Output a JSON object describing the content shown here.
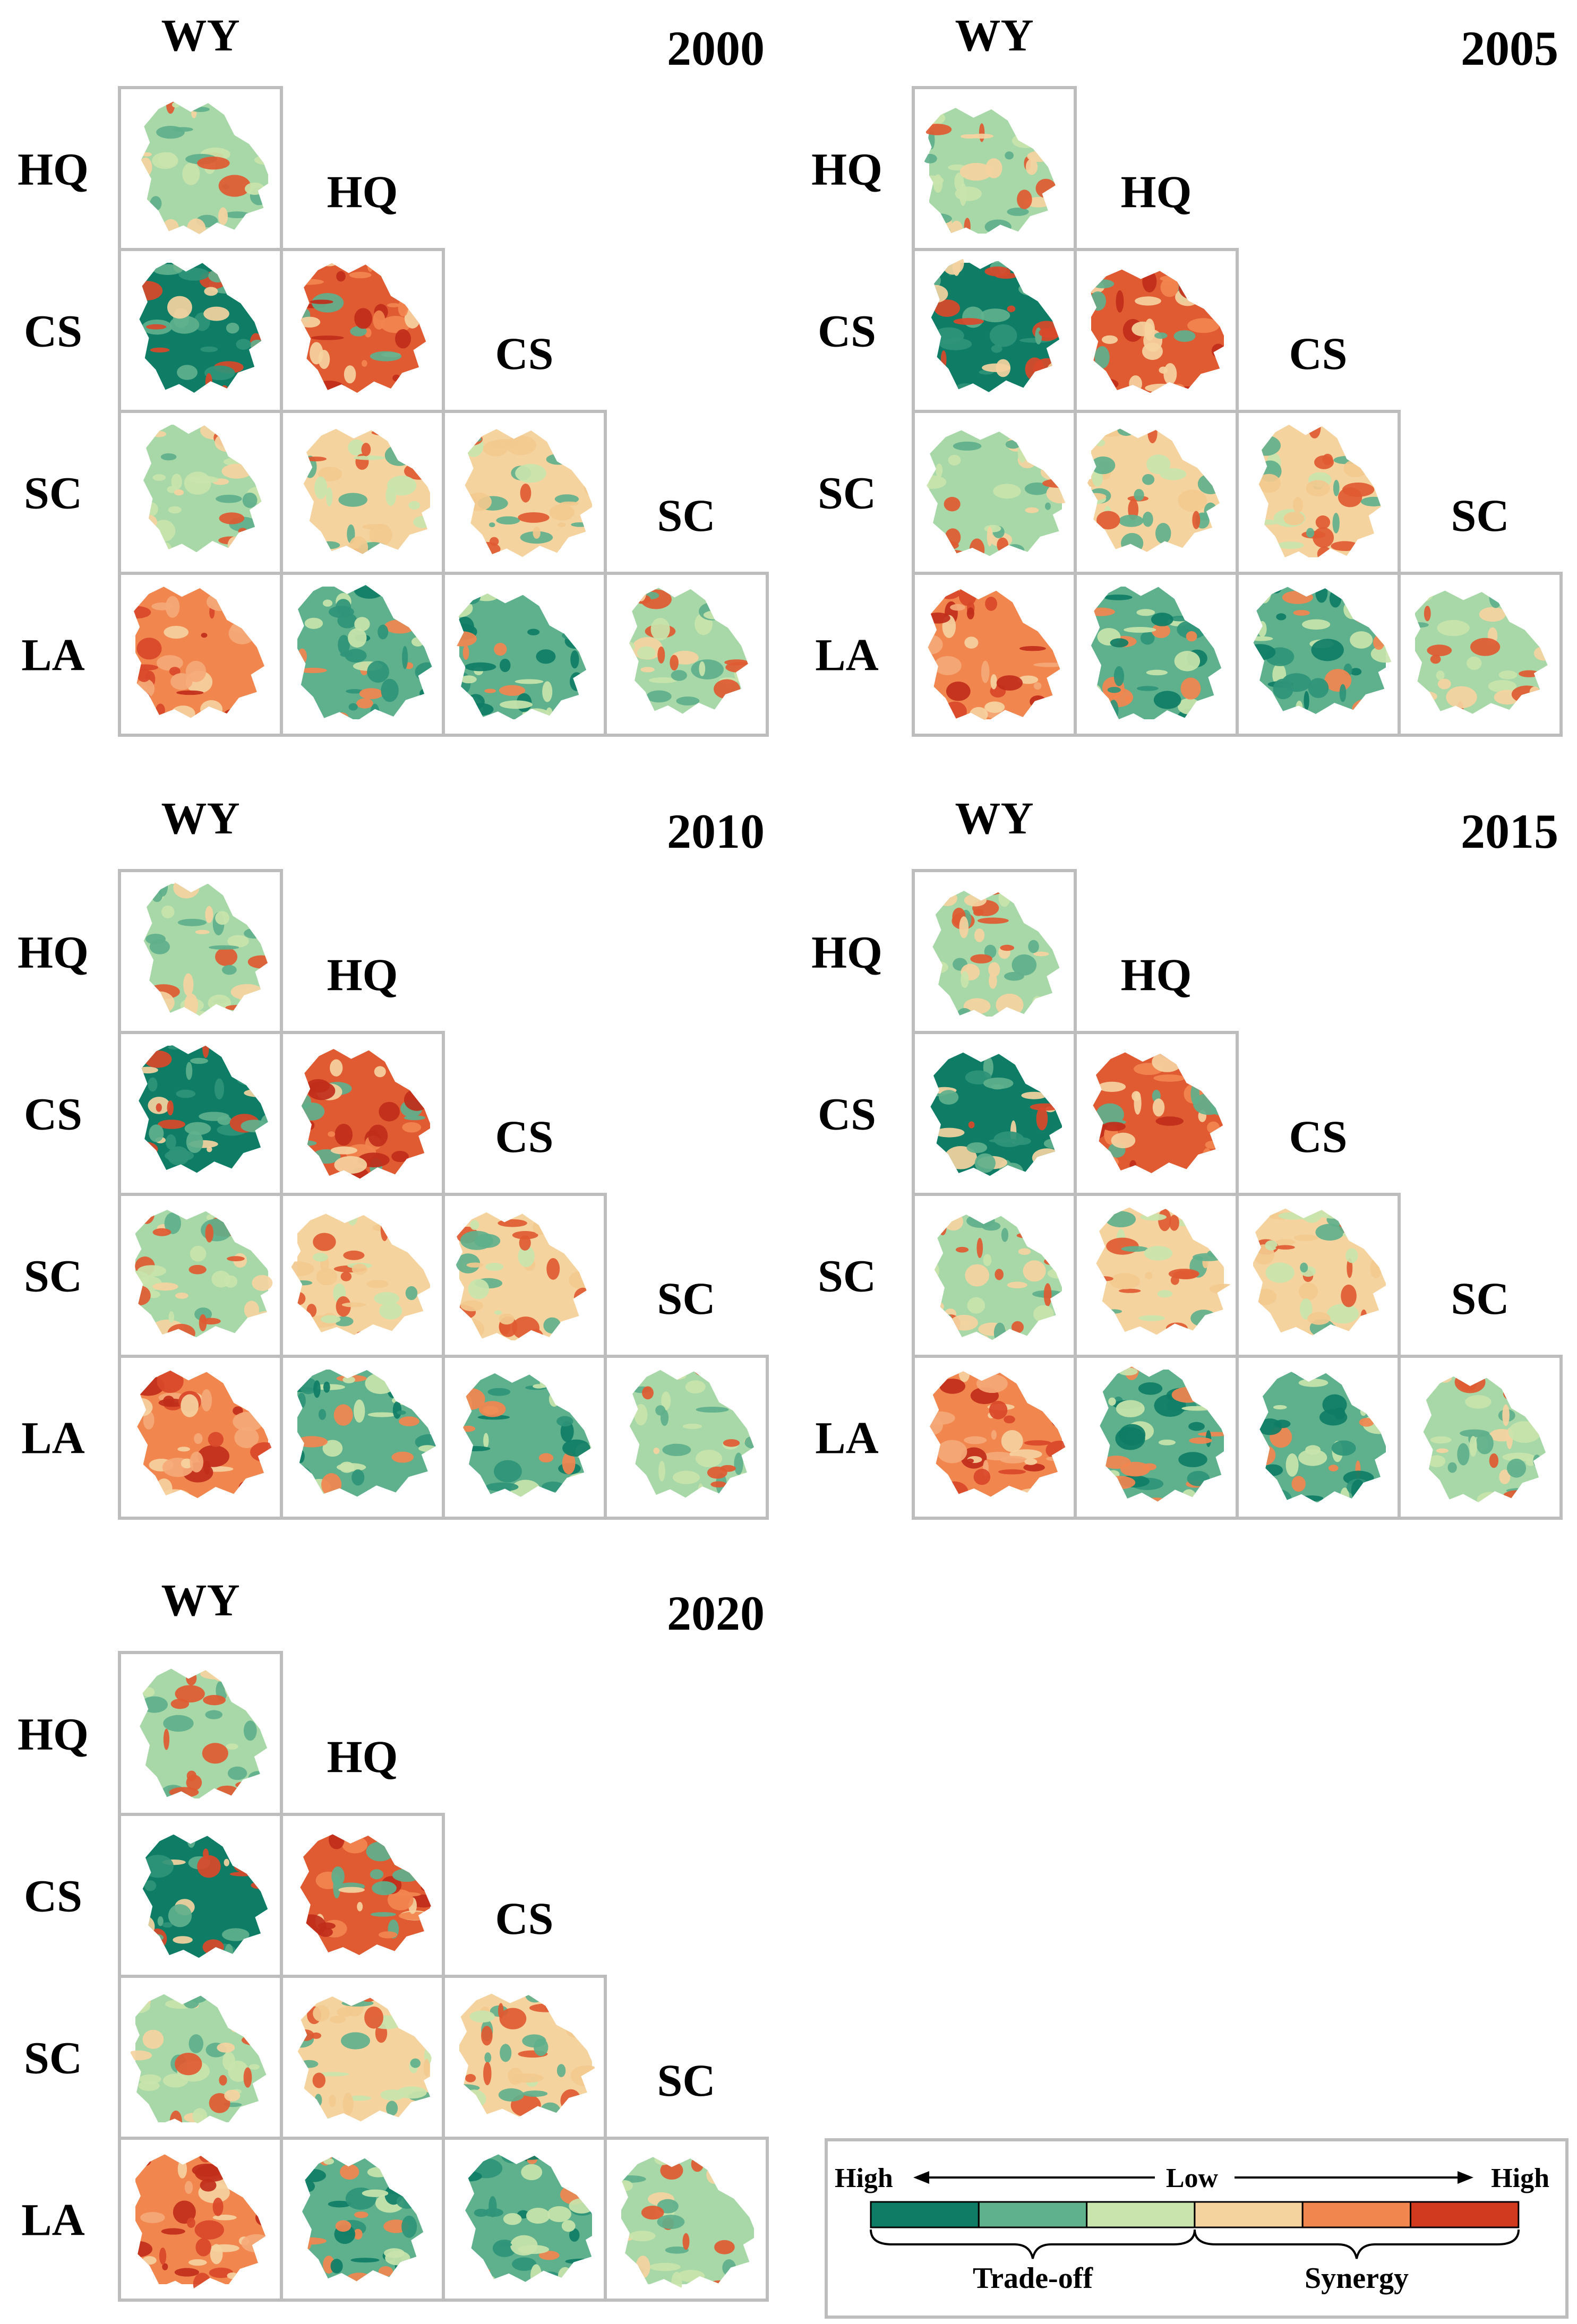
{
  "figure": {
    "panels": [
      {
        "year": "2000",
        "col_label_top": "WY",
        "row_labels": [
          "HQ",
          "CS",
          "SC",
          "LA"
        ],
        "diag_labels": [
          "HQ",
          "CS",
          "SC"
        ],
        "cells": [
          {
            "row": "HQ",
            "col": "WY",
            "class": "low-tradeoff"
          },
          {
            "row": "CS",
            "col": "WY",
            "class": "high-tradeoff"
          },
          {
            "row": "CS",
            "col": "HQ",
            "class": "high-synergy"
          },
          {
            "row": "SC",
            "col": "WY",
            "class": "low-tradeoff"
          },
          {
            "row": "SC",
            "col": "HQ",
            "class": "low-synergy"
          },
          {
            "row": "SC",
            "col": "CS",
            "class": "low-synergy"
          },
          {
            "row": "LA",
            "col": "WY",
            "class": "medium-synergy"
          },
          {
            "row": "LA",
            "col": "HQ",
            "class": "medium-tradeoff"
          },
          {
            "row": "LA",
            "col": "CS",
            "class": "medium-tradeoff"
          },
          {
            "row": "LA",
            "col": "SC",
            "class": "low-tradeoff"
          }
        ]
      },
      {
        "year": "2005",
        "col_label_top": "WY",
        "row_labels": [
          "HQ",
          "CS",
          "SC",
          "LA"
        ],
        "diag_labels": [
          "HQ",
          "CS",
          "SC"
        ],
        "cells": [
          {
            "row": "HQ",
            "col": "WY",
            "class": "low-tradeoff"
          },
          {
            "row": "CS",
            "col": "WY",
            "class": "high-tradeoff"
          },
          {
            "row": "CS",
            "col": "HQ",
            "class": "high-synergy"
          },
          {
            "row": "SC",
            "col": "WY",
            "class": "low-tradeoff"
          },
          {
            "row": "SC",
            "col": "HQ",
            "class": "low-synergy"
          },
          {
            "row": "SC",
            "col": "CS",
            "class": "low-synergy"
          },
          {
            "row": "LA",
            "col": "WY",
            "class": "medium-synergy"
          },
          {
            "row": "LA",
            "col": "HQ",
            "class": "medium-tradeoff"
          },
          {
            "row": "LA",
            "col": "CS",
            "class": "medium-tradeoff"
          },
          {
            "row": "LA",
            "col": "SC",
            "class": "low-tradeoff"
          }
        ]
      },
      {
        "year": "2010",
        "col_label_top": "WY",
        "row_labels": [
          "HQ",
          "CS",
          "SC",
          "LA"
        ],
        "diag_labels": [
          "HQ",
          "CS",
          "SC"
        ],
        "cells": [
          {
            "row": "HQ",
            "col": "WY",
            "class": "low-tradeoff"
          },
          {
            "row": "CS",
            "col": "WY",
            "class": "high-tradeoff"
          },
          {
            "row": "CS",
            "col": "HQ",
            "class": "high-synergy"
          },
          {
            "row": "SC",
            "col": "WY",
            "class": "low-tradeoff"
          },
          {
            "row": "SC",
            "col": "HQ",
            "class": "low-synergy"
          },
          {
            "row": "SC",
            "col": "CS",
            "class": "low-synergy"
          },
          {
            "row": "LA",
            "col": "WY",
            "class": "medium-synergy"
          },
          {
            "row": "LA",
            "col": "HQ",
            "class": "medium-tradeoff"
          },
          {
            "row": "LA",
            "col": "CS",
            "class": "medium-tradeoff"
          },
          {
            "row": "LA",
            "col": "SC",
            "class": "low-tradeoff"
          }
        ]
      },
      {
        "year": "2015",
        "col_label_top": "WY",
        "row_labels": [
          "HQ",
          "CS",
          "SC",
          "LA"
        ],
        "diag_labels": [
          "HQ",
          "CS",
          "SC"
        ],
        "cells": [
          {
            "row": "HQ",
            "col": "WY",
            "class": "low-tradeoff"
          },
          {
            "row": "CS",
            "col": "WY",
            "class": "high-tradeoff"
          },
          {
            "row": "CS",
            "col": "HQ",
            "class": "high-synergy"
          },
          {
            "row": "SC",
            "col": "WY",
            "class": "low-tradeoff"
          },
          {
            "row": "SC",
            "col": "HQ",
            "class": "low-synergy"
          },
          {
            "row": "SC",
            "col": "CS",
            "class": "low-synergy"
          },
          {
            "row": "LA",
            "col": "WY",
            "class": "medium-synergy"
          },
          {
            "row": "LA",
            "col": "HQ",
            "class": "medium-tradeoff"
          },
          {
            "row": "LA",
            "col": "CS",
            "class": "medium-tradeoff"
          },
          {
            "row": "LA",
            "col": "SC",
            "class": "low-tradeoff"
          }
        ]
      },
      {
        "year": "2020",
        "col_label_top": "WY",
        "row_labels": [
          "HQ",
          "CS",
          "SC",
          "LA"
        ],
        "diag_labels": [
          "HQ",
          "CS",
          "SC"
        ],
        "cells": [
          {
            "row": "HQ",
            "col": "WY",
            "class": "low-tradeoff"
          },
          {
            "row": "CS",
            "col": "WY",
            "class": "high-tradeoff"
          },
          {
            "row": "CS",
            "col": "HQ",
            "class": "high-synergy"
          },
          {
            "row": "SC",
            "col": "WY",
            "class": "low-tradeoff"
          },
          {
            "row": "SC",
            "col": "HQ",
            "class": "low-synergy"
          },
          {
            "row": "SC",
            "col": "CS",
            "class": "low-synergy"
          },
          {
            "row": "LA",
            "col": "WY",
            "class": "medium-synergy"
          },
          {
            "row": "LA",
            "col": "HQ",
            "class": "medium-tradeoff"
          },
          {
            "row": "LA",
            "col": "CS",
            "class": "medium-tradeoff"
          },
          {
            "row": "LA",
            "col": "SC",
            "class": "low-tradeoff"
          }
        ]
      }
    ]
  },
  "legend": {
    "left_label": "High",
    "center_label": "Low",
    "right_label": "High",
    "tradeoff_label": "Trade-off",
    "synergy_label": "Synergy",
    "colors": [
      "#0f7d66",
      "#5fb08c",
      "#c9e4ad",
      "#f5d39f",
      "#f2864f",
      "#d13a1f"
    ]
  },
  "class_colors": {
    "high-tradeoff": [
      "#0f7d66",
      "#5fb08c",
      "#d9482a",
      "#f5d39f",
      "#2f9478"
    ],
    "medium-tradeoff": [
      "#5fb08c",
      "#2f9478",
      "#c9e4ad",
      "#f2864f",
      "#0f7d66"
    ],
    "low-tradeoff": [
      "#a8d8a8",
      "#c9e4ad",
      "#5fb08c",
      "#f5d39f",
      "#e05a32"
    ],
    "low-synergy": [
      "#f5d39f",
      "#f2c98e",
      "#c9e4ad",
      "#e05a32",
      "#5fb08c"
    ],
    "medium-synergy": [
      "#f2864f",
      "#f5a978",
      "#d9482a",
      "#f5d39f",
      "#c02e1a"
    ],
    "high-synergy": [
      "#e05a32",
      "#c02e1a",
      "#f2864f",
      "#f5d39f",
      "#5fb08c"
    ]
  }
}
